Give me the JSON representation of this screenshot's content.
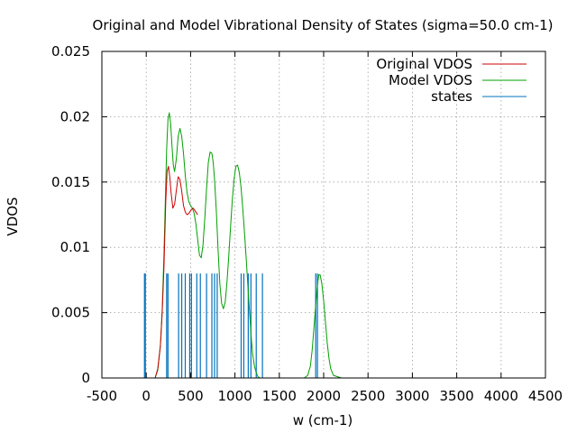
{
  "chart_data": {
    "type": "line",
    "title": "Original and Model Vibrational Density of States (sigma=50.0 cm-1)",
    "xlabel": "w (cm-1)",
    "ylabel": "VDOS",
    "xlim": [
      -500,
      4500
    ],
    "ylim": [
      0,
      0.025
    ],
    "xticks": [
      -500,
      0,
      500,
      1000,
      1500,
      2000,
      2500,
      3000,
      3500,
      4000,
      4500
    ],
    "yticks": [
      0,
      0.005,
      0.01,
      0.015,
      0.02,
      0.025
    ],
    "ytick_labels": [
      "0",
      "0.005",
      "0.01",
      "0.015",
      "0.02",
      "0.025"
    ],
    "grid": true,
    "legend_position": "top-right",
    "series": [
      {
        "name": "Original VDOS",
        "color": "#cc0000",
        "x": [
          100,
          130,
          160,
          180,
          200,
          210,
          220,
          235,
          250,
          265,
          280,
          300,
          320,
          340,
          360,
          380,
          400,
          420,
          440,
          460,
          480,
          500,
          510,
          530,
          550,
          570,
          580
        ],
        "y": [
          0,
          0.0007,
          0.0025,
          0.005,
          0.0085,
          0.011,
          0.0135,
          0.0158,
          0.0162,
          0.0154,
          0.0142,
          0.013,
          0.0133,
          0.0144,
          0.0154,
          0.0152,
          0.0143,
          0.0132,
          0.0127,
          0.0125,
          0.0126,
          0.0128,
          0.0129,
          0.013,
          0.0128,
          0.0126,
          0.0125
        ]
      },
      {
        "name": "Model VDOS",
        "color": "#00a000",
        "x": [
          100,
          130,
          160,
          180,
          200,
          215,
          230,
          245,
          260,
          275,
          290,
          305,
          320,
          340,
          360,
          380,
          400,
          420,
          440,
          460,
          480,
          500,
          520,
          540,
          560,
          580,
          600,
          620,
          640,
          660,
          680,
          700,
          720,
          740,
          755,
          770,
          790,
          810,
          830,
          850,
          870,
          890,
          910,
          930,
          950,
          970,
          990,
          1010,
          1030,
          1050,
          1070,
          1090,
          1110,
          1130,
          1150,
          1170,
          1185,
          1200,
          1220,
          1240,
          1260,
          1280,
          1300,
          1320,
          1340,
          1360,
          1380,
          1400,
          1420,
          1440,
          1460,
          1480,
          1500,
          1700,
          1780,
          1820,
          1850,
          1870,
          1890,
          1910,
          1930,
          1945,
          1960,
          1980,
          2000,
          2020,
          2040,
          2060,
          2080,
          2110,
          2200,
          4200
        ],
        "y": [
          0,
          0.0006,
          0.0025,
          0.0052,
          0.0095,
          0.0135,
          0.0175,
          0.0198,
          0.0203,
          0.0195,
          0.0178,
          0.0163,
          0.0158,
          0.0168,
          0.0185,
          0.0191,
          0.0185,
          0.0172,
          0.0155,
          0.0142,
          0.0135,
          0.0132,
          0.013,
          0.0126,
          0.0118,
          0.0106,
          0.0094,
          0.0092,
          0.0102,
          0.0122,
          0.0145,
          0.0165,
          0.0173,
          0.0172,
          0.0165,
          0.0152,
          0.0128,
          0.0098,
          0.0072,
          0.0057,
          0.0053,
          0.0058,
          0.0073,
          0.0093,
          0.0115,
          0.0136,
          0.0152,
          0.0162,
          0.0163,
          0.0157,
          0.0145,
          0.0128,
          0.0109,
          0.0088,
          0.0066,
          0.0045,
          0.003,
          0.0018,
          0.0009,
          0.0004,
          0.0001,
          0,
          0,
          0,
          0,
          0,
          0,
          0,
          0,
          0,
          0,
          0,
          0,
          0,
          0,
          0.0002,
          0.0009,
          0.0021,
          0.0038,
          0.0056,
          0.0071,
          0.0079,
          0.0079,
          0.0072,
          0.0059,
          0.0043,
          0.0027,
          0.0015,
          0.0007,
          0.0002,
          0,
          0
        ]
      },
      {
        "name": "states",
        "color": "#0072bd",
        "type": "impulse",
        "height": 0.008,
        "x": [
          -20,
          -10,
          230,
          245,
          365,
          400,
          440,
          490,
          510,
          570,
          610,
          680,
          740,
          770,
          800,
          1070,
          1100,
          1150,
          1180,
          1240,
          1310,
          1910,
          1930
        ]
      }
    ]
  }
}
